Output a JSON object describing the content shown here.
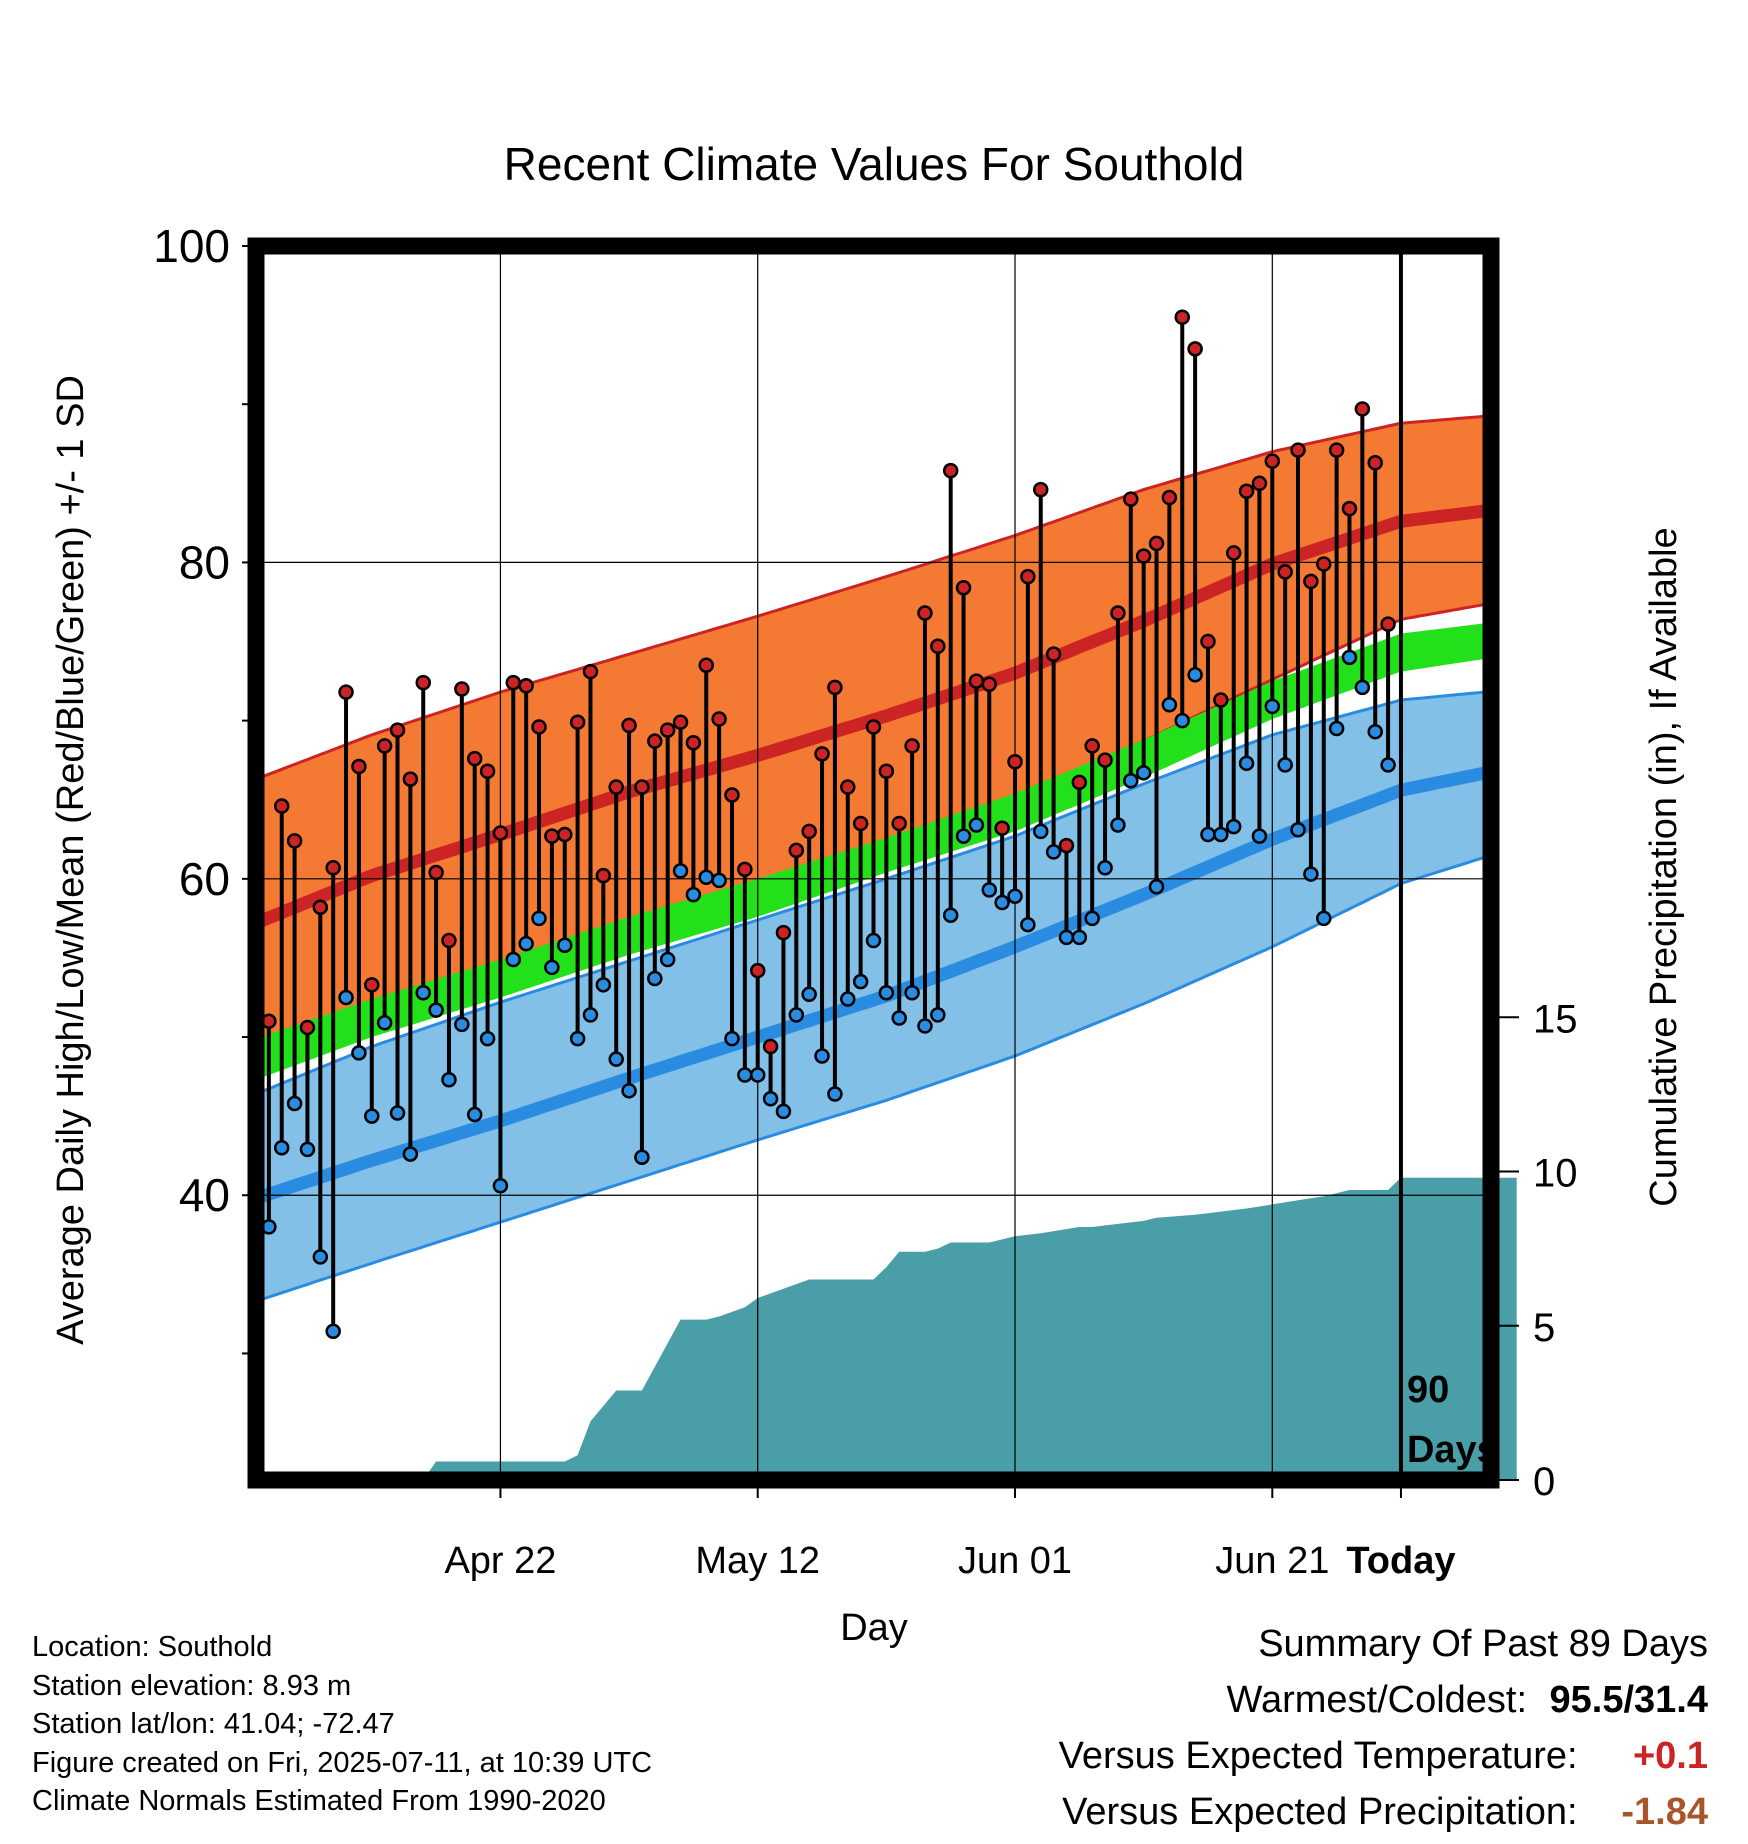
{
  "chart_data": {
    "type": "line",
    "title": "Recent Climate Values For Southold",
    "xlabel": "Day",
    "ylabel": "Average Daily High/Low/Mean (Red/Blue/Green) +/- 1 SD",
    "y2label": "Cumulative Precipitation (in), If Available",
    "ylim": [
      22,
      100
    ],
    "y2lim": [
      0,
      40
    ],
    "xlim": [
      -89,
      7
    ],
    "x_day_offsets_from_today": true,
    "y_ticks": [
      "100",
      "80",
      "60",
      "40"
    ],
    "y_minor_ticks": [
      90,
      70,
      50,
      30
    ],
    "y2_ticks": [
      "0",
      "5",
      "10",
      "15"
    ],
    "x_ticks": [
      {
        "label": "Apr 22",
        "day": -70
      },
      {
        "label": "May 12",
        "day": -50
      },
      {
        "label": "Jun 01",
        "day": -30
      },
      {
        "label": "Jun 21",
        "day": -10
      },
      {
        "label": "Today",
        "day": 0
      }
    ],
    "today_marker_text": [
      "90",
      "Days"
    ],
    "grid": true,
    "normals": {
      "days": [
        -89,
        -80,
        -70,
        -60,
        -50,
        -40,
        -30,
        -20,
        -10,
        0,
        9
      ],
      "high_mean": [
        57.2,
        60.2,
        62.8,
        65.5,
        67.8,
        70.3,
        73.0,
        76.3,
        79.9,
        82.6,
        83.5
      ],
      "high_sd_upper": [
        66.3,
        69.1,
        71.8,
        74.2,
        76.6,
        79.1,
        81.7,
        84.6,
        87.0,
        88.8,
        89.4
      ],
      "high_sd_lower": [
        48.2,
        51.4,
        54.0,
        56.6,
        59.2,
        62.0,
        65.0,
        68.7,
        72.6,
        76.4,
        77.7
      ],
      "low_mean": [
        39.8,
        42.2,
        44.7,
        47.4,
        50.0,
        52.6,
        55.7,
        59.0,
        62.5,
        65.6,
        67.1
      ],
      "low_sd_upper": [
        46.4,
        49.4,
        52.2,
        54.8,
        57.4,
        60.0,
        62.7,
        66.0,
        69.1,
        71.3,
        72.0
      ],
      "low_sd_lower": [
        33.3,
        35.7,
        38.3,
        40.9,
        43.5,
        46.0,
        48.8,
        52.1,
        55.7,
        59.7,
        62.0
      ],
      "mean_mean": [
        48.6,
        51.2,
        53.7,
        56.4,
        58.8,
        61.5,
        64.2,
        67.6,
        71.3,
        74.3,
        75.3
      ],
      "mean_sd_upper": [
        49.9,
        52.4,
        54.9,
        57.6,
        60.0,
        62.6,
        65.4,
        68.8,
        72.5,
        75.5,
        76.4
      ],
      "mean_sd_lower": [
        47.3,
        50.0,
        52.5,
        55.2,
        57.6,
        60.4,
        63.0,
        66.4,
        70.1,
        73.1,
        74.2
      ]
    },
    "series": [
      {
        "name": "High",
        "color": "#cc2424",
        "values": [
          41.0,
          51.0,
          64.6,
          62.4,
          50.6,
          58.2,
          60.7,
          71.8,
          67.1,
          53.3,
          68.4,
          69.4,
          66.3,
          72.4,
          60.4,
          56.1,
          72.0,
          67.6,
          66.8,
          62.9,
          72.4,
          72.2,
          69.6,
          62.7,
          62.8,
          69.9,
          73.1,
          60.2,
          65.8,
          69.7,
          65.8,
          68.7,
          69.4,
          69.9,
          68.6,
          73.5,
          70.1,
          65.3,
          60.6,
          54.2,
          49.4,
          56.6,
          61.8,
          63.0,
          67.9,
          72.1,
          65.8,
          63.5,
          69.6,
          66.8,
          63.5,
          68.4,
          76.8,
          74.7,
          85.8,
          78.4,
          72.5,
          72.3,
          63.2,
          67.4,
          79.1,
          84.6,
          74.2,
          62.1,
          66.1,
          68.4,
          67.5,
          76.8,
          84.0,
          80.4,
          81.2,
          84.1,
          95.5,
          93.5,
          75.0,
          71.3,
          80.6,
          84.5,
          85.0,
          86.4,
          79.4,
          87.1,
          78.8,
          79.9,
          87.1,
          83.4,
          89.7,
          86.3,
          76.1
        ]
      },
      {
        "name": "Low",
        "color": "#2a8ce0",
        "values": [
          37.4,
          38.0,
          43.0,
          45.8,
          42.9,
          36.1,
          31.4,
          52.5,
          49.0,
          45.0,
          50.9,
          45.2,
          42.6,
          52.8,
          51.7,
          47.3,
          50.8,
          45.1,
          49.9,
          40.6,
          54.9,
          55.9,
          57.5,
          54.4,
          55.8,
          49.9,
          51.4,
          53.3,
          48.6,
          46.6,
          42.4,
          53.7,
          54.9,
          60.5,
          59.0,
          60.1,
          59.9,
          49.9,
          47.6,
          47.6,
          46.1,
          45.3,
          51.4,
          52.7,
          48.8,
          46.4,
          52.4,
          53.5,
          56.1,
          52.8,
          51.2,
          52.8,
          50.7,
          51.4,
          57.7,
          62.7,
          63.4,
          59.3,
          58.5,
          58.9,
          57.1,
          63.0,
          61.7,
          56.3,
          56.3,
          57.5,
          60.7,
          63.4,
          66.2,
          66.7,
          59.5,
          71.0,
          70.0,
          72.9,
          62.8,
          62.8,
          63.3,
          67.3,
          62.7,
          70.9,
          67.2,
          63.1,
          60.3,
          57.5,
          69.5,
          74.0,
          72.1,
          69.3,
          67.2
        ]
      }
    ],
    "precip_cumulative": {
      "name": "Cumulative Precipitation",
      "color": "#4a9ea8",
      "days": [
        -89,
        -76,
        -75,
        -70,
        -65,
        -64,
        -63,
        -61,
        -60,
        -59,
        -56,
        -54,
        -53,
        -51,
        -50,
        -48,
        -46,
        -45,
        -41,
        -40,
        -39,
        -37,
        -36,
        -35,
        -32,
        -30,
        -28,
        -25,
        -24,
        -22,
        -20,
        -19,
        -16,
        -14,
        -12,
        -9,
        -6,
        -4,
        -1,
        0,
        9
      ],
      "values": [
        0,
        0,
        0.6,
        0.6,
        0.6,
        0.8,
        1.9,
        2.9,
        2.9,
        2.9,
        5.2,
        5.2,
        5.3,
        5.6,
        5.9,
        6.2,
        6.5,
        6.5,
        6.5,
        6.9,
        7.4,
        7.4,
        7.5,
        7.7,
        7.7,
        7.9,
        8.0,
        8.2,
        8.2,
        8.3,
        8.4,
        8.5,
        8.6,
        8.7,
        8.8,
        9.0,
        9.2,
        9.4,
        9.4,
        9.8,
        9.8
      ]
    }
  },
  "info": {
    "lines": [
      "Location: Southold",
      "Station elevation: 8.93 m",
      "Station lat/lon: 41.04; -72.47",
      "Figure created on Fri, 2025-07-11, at 10:39 UTC",
      "Climate Normals Estimated From 1990-2020"
    ]
  },
  "summary": {
    "title": "Summary Of Past 89 Days",
    "warmest_coldest_label": "Warmest/Coldest:",
    "warmest_coldest_value": "95.5/31.4",
    "temp_label": "Versus Expected Temperature:",
    "temp_value": "+0.1",
    "temp_color": "#cc2424",
    "precip_label": "Versus Expected Precipitation:",
    "precip_value": "-1.84",
    "precip_color": "#a8552b"
  },
  "colors": {
    "high_band": "#f47a33",
    "high_line": "#cc2424",
    "low_band": "#82c0e8",
    "low_line": "#2a8ce0",
    "mean_band": "#22e01a",
    "precip_fill": "#4a9ea8"
  }
}
